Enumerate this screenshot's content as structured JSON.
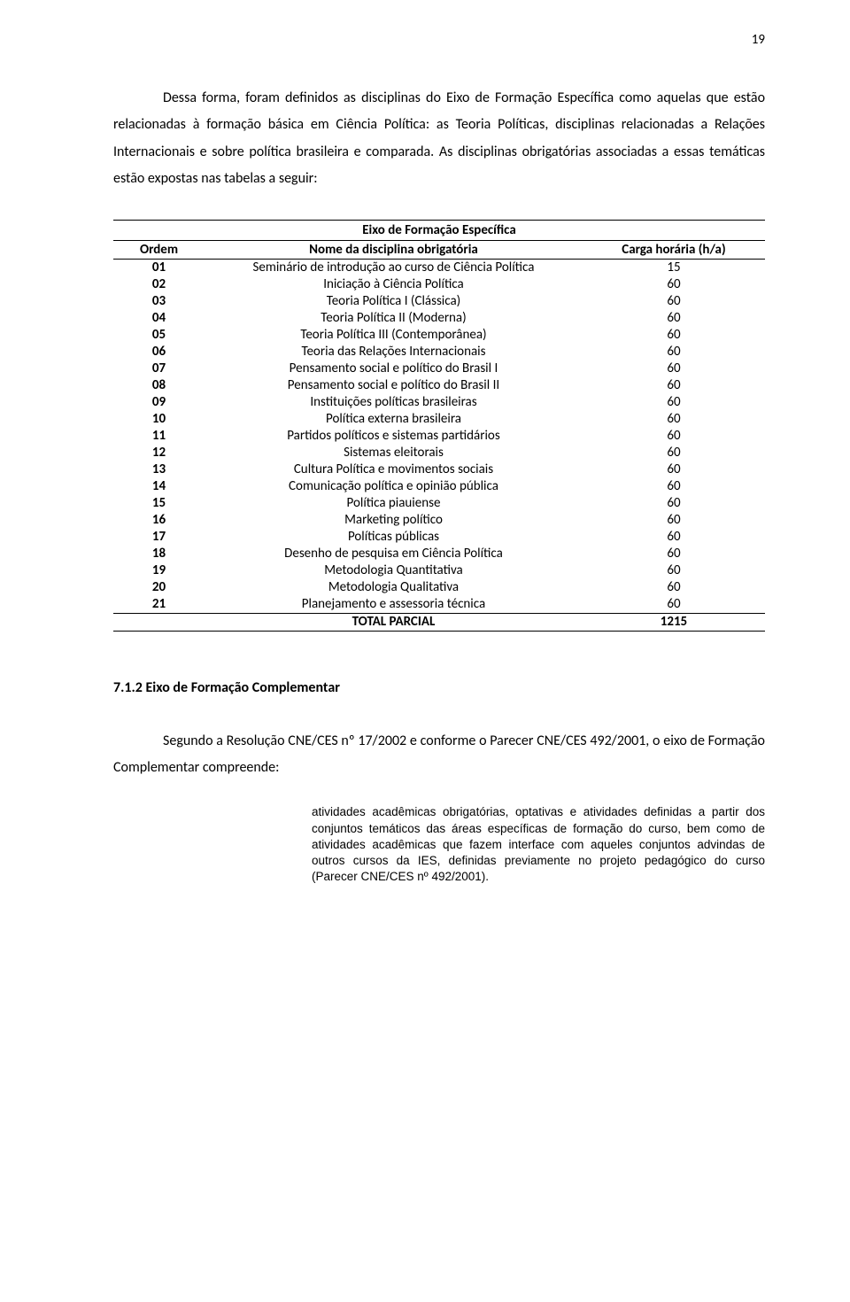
{
  "pageNumber": "19",
  "para1": "Dessa forma, foram definidos as disciplinas do Eixo de Formação Específica como aquelas que estão relacionadas à formação básica em Ciência Política: as Teoria Políticas, disciplinas relacionadas a Relações Internacionais e sobre política brasileira e comparada. As disciplinas obrigatórias associadas a essas temáticas estão expostas nas tabelas a seguir:",
  "table": {
    "title": "Eixo de Formação Específica",
    "headers": {
      "ord": "Ordem",
      "name": "Nome da disciplina obrigatória",
      "load": "Carga horária (h/a)"
    },
    "rows": [
      {
        "ord": "01",
        "name": "Seminário de introdução ao curso de Ciência Política",
        "load": "15"
      },
      {
        "ord": "02",
        "name": "Iniciação à Ciência Política",
        "load": "60"
      },
      {
        "ord": "03",
        "name": "Teoria Política I (Clássica)",
        "load": "60"
      },
      {
        "ord": "04",
        "name": "Teoria Política II (Moderna)",
        "load": "60"
      },
      {
        "ord": "05",
        "name": "Teoria Política III (Contemporânea)",
        "load": "60"
      },
      {
        "ord": "06",
        "name": "Teoria das Relações Internacionais",
        "load": "60"
      },
      {
        "ord": "07",
        "name": "Pensamento social e político do Brasil I",
        "load": "60"
      },
      {
        "ord": "08",
        "name": "Pensamento social e político do Brasil II",
        "load": "60"
      },
      {
        "ord": "09",
        "name": "Instituições políticas brasileiras",
        "load": "60"
      },
      {
        "ord": "10",
        "name": "Política externa brasileira",
        "load": "60"
      },
      {
        "ord": "11",
        "name": "Partidos políticos e sistemas partidários",
        "load": "60"
      },
      {
        "ord": "12",
        "name": "Sistemas eleitorais",
        "load": "60"
      },
      {
        "ord": "13",
        "name": "Cultura Política e movimentos sociais",
        "load": "60"
      },
      {
        "ord": "14",
        "name": "Comunicação política e opinião pública",
        "load": "60"
      },
      {
        "ord": "15",
        "name": "Política piauiense",
        "load": "60"
      },
      {
        "ord": "16",
        "name": "Marketing político",
        "load": "60"
      },
      {
        "ord": "17",
        "name": "Políticas públicas",
        "load": "60"
      },
      {
        "ord": "18",
        "name": "Desenho de pesquisa em Ciência Política",
        "load": "60"
      },
      {
        "ord": "19",
        "name": "Metodologia Quantitativa",
        "load": "60"
      },
      {
        "ord": "20",
        "name": "Metodologia Qualitativa",
        "load": "60"
      },
      {
        "ord": "21",
        "name": "Planejamento e assessoria técnica",
        "load": "60"
      }
    ],
    "totalLabel": "TOTAL PARCIAL",
    "totalValue": "1215"
  },
  "sectionHeading": "7.1.2 Eixo de Formação Complementar",
  "para2": "Segundo a Resolução CNE/CES nº 17/2002 e conforme o Parecer CNE/CES 492/2001, o eixo de Formação Complementar compreende:",
  "quote": "atividades acadêmicas obrigatórias, optativas e atividades definidas a partir dos conjuntos temáticos das áreas específicas de formação do curso, bem como de atividades acadêmicas que fazem interface com aqueles conjuntos advindas de outros cursos da IES, definidas previamente no projeto pedagógico do curso (Parecer CNE/CES nº 492/2001)."
}
